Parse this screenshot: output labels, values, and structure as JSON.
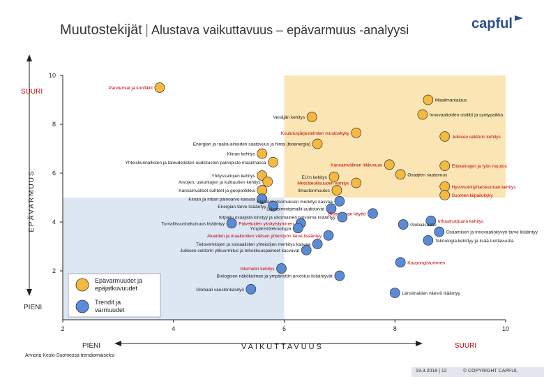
{
  "header": {
    "title": "Muutostekijät",
    "separator": "|",
    "subtitle": "Alustava vaikuttavuus – epävarmuus -analyysi",
    "logo_text": "capful"
  },
  "footer": {
    "note": "Arvioitu Keski-Suomessa trendiomaiseksi",
    "date": "19.3.2018 | 12",
    "copyright": "© COPYRIGHT CAPFUL"
  },
  "chart_data": {
    "type": "scatter",
    "title": "Muutostekijät",
    "xlabel": "VAIKUTTAVUUS",
    "ylabel": "EPÄVARMUUS",
    "xlim": [
      2,
      10
    ],
    "ylim": [
      0,
      10
    ],
    "x_ticks": [
      "2",
      "4",
      "6",
      "8",
      "10"
    ],
    "y_ticks": [
      "2",
      "4",
      "6",
      "8",
      "10"
    ],
    "x_end_labels": {
      "low": "PIENI",
      "high": "SUURI"
    },
    "y_end_labels": {
      "low": "PIENI",
      "high": "SUURI"
    },
    "colors": {
      "orange_zone": "#fce5b4",
      "blue_zone": "#dde6f3",
      "marker_orange": "#f4b93e",
      "marker_blue": "#5a8bd8",
      "label_red": "#c00000",
      "axis": "#222222"
    },
    "legend": [
      {
        "label": "Epävarmuudet ja epäjatkuvuudet",
        "color": "#f4b93e"
      },
      {
        "label": "Trendit ja varmuudet",
        "color": "#5a8bd8"
      }
    ],
    "points": [
      {
        "label": "Pandemiat ja konfliktit",
        "x": 3.75,
        "y": 9.5,
        "group": "orange",
        "red": true
      },
      {
        "label": "Maailmantalous",
        "x": 8.6,
        "y": 9.0,
        "group": "orange",
        "red": false
      },
      {
        "label": "Innovaatioiden sisältö ja syntypaikka",
        "x": 8.5,
        "y": 8.4,
        "group": "orange",
        "red": false
      },
      {
        "label": "Venäjän kehitys",
        "x": 6.5,
        "y": 8.3,
        "group": "orange",
        "red": false
      },
      {
        "label": "Koulutusjärjestelmien muutoskyky",
        "x": 7.3,
        "y": 7.65,
        "group": "orange",
        "red": true
      },
      {
        "label": "Julkisen sektorin kehitys",
        "x": 8.9,
        "y": 7.5,
        "group": "orange",
        "red": true
      },
      {
        "label": "Energian ja raaka-aineiden saatavuus ja hinta (bioenergia)",
        "x": 6.6,
        "y": 7.2,
        "group": "orange",
        "red": false
      },
      {
        "label": "Kiinan kehitys",
        "x": 5.6,
        "y": 6.8,
        "group": "orange",
        "red": false
      },
      {
        "label": "Yhteiskunnallisten ja taloudellisten uudistusten painopiste maailmassa",
        "x": 5.8,
        "y": 6.45,
        "group": "orange",
        "red": false
      },
      {
        "label": "Kansainvälinen liikkuvuus",
        "x": 7.9,
        "y": 6.35,
        "group": "orange",
        "red": true
      },
      {
        "label": "Elinkeinojen ja työn muutos",
        "x": 8.9,
        "y": 6.3,
        "group": "orange",
        "red": true
      },
      {
        "label": "Osaajien saatavuus",
        "x": 8.1,
        "y": 5.95,
        "group": "orange",
        "red": false
      },
      {
        "label": "Yhdysvaltojen kehitys",
        "x": 5.6,
        "y": 5.9,
        "group": "orange",
        "red": false
      },
      {
        "label": "EU:n kehitys",
        "x": 6.9,
        "y": 5.85,
        "group": "orange",
        "red": false
      },
      {
        "label": "Arvojen, uskontojen ja kulttuurien kehitys",
        "x": 5.7,
        "y": 5.65,
        "group": "orange",
        "red": false
      },
      {
        "label": "Metsäteollisuuden kehitys",
        "x": 7.3,
        "y": 5.6,
        "group": "orange",
        "red": true
      },
      {
        "label": "Hyvinvointiyhteiskunnan kehitys",
        "x": 8.9,
        "y": 5.45,
        "group": "orange",
        "red": true
      },
      {
        "label": "Kansainväliset suhteet ja geopolitiikka",
        "x": 5.6,
        "y": 5.3,
        "group": "orange",
        "red": false
      },
      {
        "label": "Ilmastonmuutos",
        "x": 6.95,
        "y": 5.3,
        "group": "orange",
        "red": false
      },
      {
        "label": "Suomen kilpailukyky",
        "x": 8.9,
        "y": 5.1,
        "group": "orange",
        "red": true
      },
      {
        "label": "Kiinan ja Intian painoarvo kasvaa",
        "x": 5.6,
        "y": 4.95,
        "group": "blue",
        "red": false
      },
      {
        "label": "Elämänkatsomuksen merkitys kasvaa",
        "x": 7.0,
        "y": 4.85,
        "group": "blue",
        "red": false
      },
      {
        "label": "Energian tarve lisääntyy",
        "x": 5.8,
        "y": 4.65,
        "group": "blue",
        "red": false
      },
      {
        "label": "Liiketoimintamallit uudistuvat",
        "x": 6.85,
        "y": 4.55,
        "group": "blue",
        "red": false
      },
      {
        "label": "Bioenergian käyttö",
        "x": 7.6,
        "y": 4.35,
        "group": "blue",
        "red": true
      },
      {
        "label": "Kilpailu osaajista kiristyy ja ulkomainen työvoima lisääntyy",
        "x": 7.05,
        "y": 4.2,
        "group": "blue",
        "red": false
      },
      {
        "label": "Infrastruktuurin kehitys",
        "x": 8.65,
        "y": 4.05,
        "group": "blue",
        "red": true
      },
      {
        "label": "Palveluiden yksityistyminen",
        "x": 6.3,
        "y": 3.95,
        "group": "blue",
        "red": true
      },
      {
        "label": "Turvallisuushakuisuus lisääntyy",
        "x": 5.05,
        "y": 3.95,
        "group": "blue",
        "red": false
      },
      {
        "label": "Globalisaatio",
        "x": 8.15,
        "y": 3.9,
        "group": "blue",
        "red": false
      },
      {
        "label": "Ympäristöteknologia",
        "x": 6.25,
        "y": 3.75,
        "group": "blue",
        "red": false
      },
      {
        "label": "Osaamisen ja innovaatiokyvyn tarve lisääntyy",
        "x": 8.8,
        "y": 3.6,
        "group": "blue",
        "red": false
      },
      {
        "label": "Alueiden ja maakuntien välisen yhteistyön tarve lisääntyy",
        "x": 6.8,
        "y": 3.45,
        "group": "blue",
        "red": true
      },
      {
        "label": "Teknologia kehittyy ja lisää tuottavuutta",
        "x": 8.6,
        "y": 3.25,
        "group": "blue",
        "red": false
      },
      {
        "label": "Tietoverkkojen ja sosiaalisten yhteisöjen merkitys kasvaa",
        "x": 6.6,
        "y": 3.1,
        "group": "blue",
        "red": false
      },
      {
        "label": "Julkisen sektorin ylikuormitus ja tehokkuuspaineet kasvavat",
        "x": 6.4,
        "y": 2.85,
        "group": "blue",
        "red": false
      },
      {
        "label": "Kaupungistuminen",
        "x": 8.1,
        "y": 2.35,
        "group": "blue",
        "red": true
      },
      {
        "label": "Internetin kehitys",
        "x": 5.95,
        "y": 2.1,
        "group": "blue",
        "red": true
      },
      {
        "label": "Biologisen näkökulman ja ympäristön arvostus lisääntyvät",
        "x": 7.0,
        "y": 1.8,
        "group": "blue",
        "red": false
      },
      {
        "label": "Globaali väestönkäsityö",
        "x": 5.4,
        "y": 1.25,
        "group": "blue",
        "red": false
      },
      {
        "label": "Länsimaiden väestö ikääntyy",
        "x": 8.0,
        "y": 1.1,
        "group": "blue",
        "red": false
      }
    ]
  }
}
